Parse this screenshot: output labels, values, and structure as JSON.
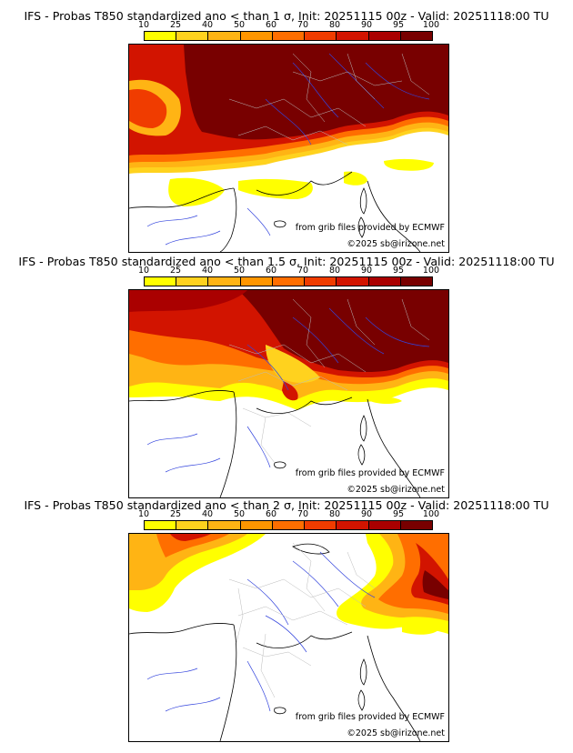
{
  "colorbar": {
    "ticks": [
      "10",
      "25",
      "40",
      "50",
      "60",
      "70",
      "80",
      "90",
      "95",
      "100"
    ],
    "colors": [
      "#ffff00",
      "#ffd21e",
      "#ffb414",
      "#ff9600",
      "#ff6e00",
      "#f03c00",
      "#d21400",
      "#aa0000",
      "#780000"
    ]
  },
  "panels": [
    {
      "title": "IFS - Probas T850  standardized ano < than 1 σ, Init: 20251115 00z - Valid: 20251118:00 TU",
      "threshold_sigma": 1,
      "source_text": "from grib files provided by ECMWF",
      "copyright": "©2025 sb@irizone.net"
    },
    {
      "title": "IFS - Probas T850  standardized ano < than 1.5 σ, Init: 20251115 00z - Valid: 20251118:00 TU",
      "threshold_sigma": 1.5,
      "source_text": "from grib files provided by ECMWF",
      "copyright": "©2025 sb@irizone.net"
    },
    {
      "title": "IFS - Probas T850  standardized ano < than 2 σ, Init: 20251115 00z - Valid: 20251118:00 TU",
      "threshold_sigma": 2,
      "source_text": "from grib files provided by ECMWF",
      "copyright": "©2025 sb@irizone.net"
    }
  ]
}
